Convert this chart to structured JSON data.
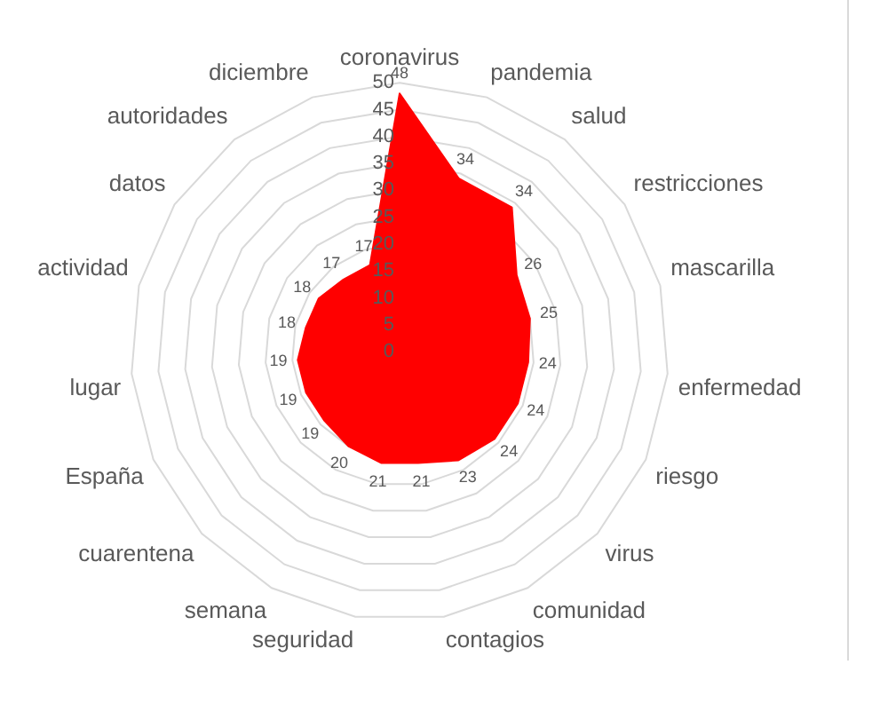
{
  "chart_data": {
    "type": "radar",
    "categories": [
      "coronavirus",
      "pandemia",
      "salud",
      "restricciones",
      "mascarilla",
      "enfermedad",
      "riesgo",
      "virus",
      "comunidad",
      "contagios",
      "seguridad",
      "semana",
      "cuarentena",
      "España",
      "lugar",
      "actividad",
      "datos",
      "autoridades",
      "diciembre"
    ],
    "series": [
      {
        "color": "#ff0000",
        "values": [
          48,
          34,
          34,
          26,
          25,
          24,
          24,
          24,
          23,
          21,
          21,
          20,
          19,
          19,
          19,
          18,
          18,
          17,
          17
        ]
      }
    ],
    "ylim": [
      0,
      50
    ],
    "yticks": [
      0,
      5,
      10,
      15,
      20,
      25,
      30,
      35,
      40,
      45,
      50
    ],
    "grid": true,
    "data_labels": true
  }
}
